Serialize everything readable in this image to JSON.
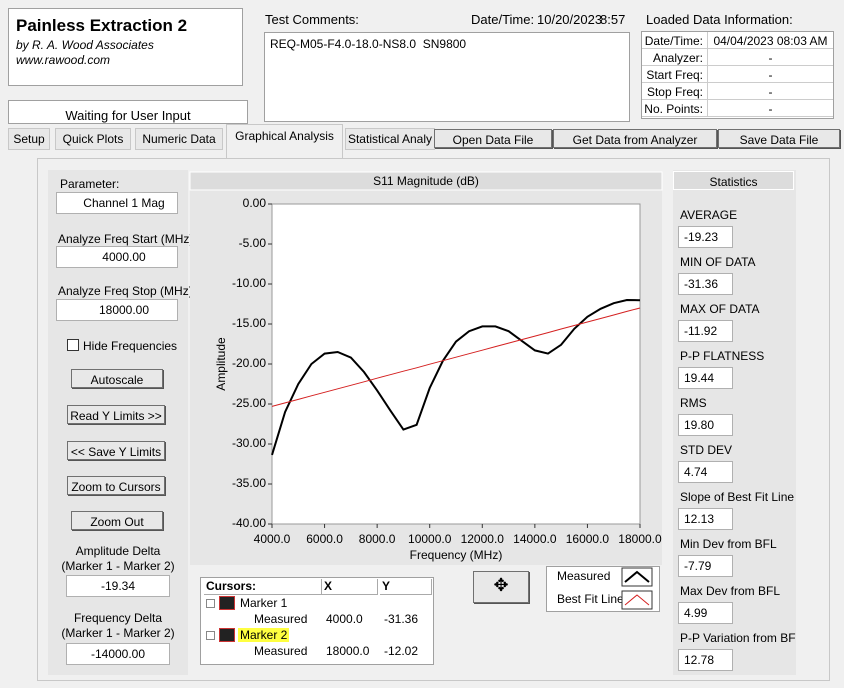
{
  "header": {
    "title": "Painless Extraction 2",
    "author": "by R. A. Wood Associates",
    "url": "www.rawood.com"
  },
  "status": "Waiting for User Input",
  "test_comments": {
    "label": "Test Comments:",
    "datetime_label": "Date/Time:",
    "date": "10/20/2023",
    "time": "8:57",
    "comment": "REQ-M05-F4.0-18.0-NS8.0  SN9800"
  },
  "loaded_data": {
    "title": "Loaded Data Information:",
    "rows": [
      [
        "Date/Time:",
        "04/04/2023 08:03 AM"
      ],
      [
        "Analyzer:",
        "-"
      ],
      [
        "Start Freq:",
        "-"
      ],
      [
        "Stop Freq:",
        "-"
      ],
      [
        "No. Points:",
        "-"
      ]
    ]
  },
  "tabs": [
    "Setup",
    "Quick Plots",
    "Numeric Data",
    "Graphical Analysis",
    "Statistical Analy"
  ],
  "buttons": [
    "Open Data File",
    "Get Data from Analyzer",
    "Save Data File"
  ],
  "controls": {
    "parameter_label": "Parameter:",
    "parameter": "Channel 1 Mag",
    "start_label": "Analyze Freq Start (MHz)",
    "start": "4000.00",
    "stop_label": "Analyze Freq Stop (MHz)",
    "stop": "18000.00",
    "hide": "Hide Frequencies",
    "side_buttons": [
      "Autoscale",
      "Read Y Limits >>",
      "<< Save Y Limits",
      "Zoom to Cursors",
      "Zoom Out"
    ],
    "amp_delta_label": [
      "Amplitude Delta",
      "(Marker 1 - Marker 2)"
    ],
    "amp_delta": "-19.34",
    "freq_delta_label": [
      "Frequency Delta",
      "(Marker 1 - Marker 2)"
    ],
    "freq_delta": "-14000.00"
  },
  "statistics": {
    "title": "Statistics",
    "items": [
      {
        "label": "AVERAGE",
        "value": "-19.23"
      },
      {
        "label": "MIN OF DATA",
        "value": "-31.36"
      },
      {
        "label": "MAX OF DATA",
        "value": "-11.92"
      },
      {
        "label": "P-P FLATNESS",
        "value": "19.44"
      },
      {
        "label": "RMS",
        "value": "19.80"
      },
      {
        "label": "STD DEV",
        "value": "4.74"
      },
      {
        "label": "Slope of Best Fit Line",
        "value": "12.13"
      },
      {
        "label": "Min Dev from BFL",
        "value": "-7.79"
      },
      {
        "label": "Max Dev from BFL",
        "value": "4.99"
      },
      {
        "label": "P-P Variation from BF",
        "value": "12.78"
      }
    ]
  },
  "cursors": {
    "headers": [
      "Cursors:",
      "X",
      "Y"
    ],
    "rows": [
      {
        "name": "Marker 1",
        "plot": "Measured",
        "x": "4000.0",
        "y": "-31.36"
      },
      {
        "name": "Marker 2",
        "plot": "Measured",
        "x": "18000.0",
        "y": "-12.02"
      }
    ]
  },
  "chart_data": {
    "type": "line",
    "title": "S11 Magnitude (dB)",
    "x_label": "Frequency (MHz)",
    "y_label": "Amplitude",
    "x": [
      4000,
      4500,
      5000,
      5500,
      6000,
      6500,
      7000,
      7500,
      8000,
      8500,
      9000,
      9500,
      10000,
      10500,
      11000,
      11500,
      12000,
      12500,
      13000,
      13500,
      14000,
      14500,
      15000,
      15500,
      16000,
      16500,
      17000,
      17500,
      18000
    ],
    "series": [
      {
        "name": "Measured",
        "color": "#000000",
        "values": [
          -31.36,
          -26,
          -22.5,
          -20,
          -18.7,
          -18.5,
          -19.2,
          -21,
          -23.3,
          -25.8,
          -28.2,
          -27.6,
          -23,
          -19.6,
          -17.2,
          -15.9,
          -15.3,
          -15.3,
          -15.9,
          -17.1,
          -18.3,
          -18.7,
          -17.6,
          -15.6,
          -14.1,
          -13.1,
          -12.4,
          -12,
          -12.02
        ]
      },
      {
        "name": "Best Fit Line",
        "color": "#d42020",
        "values": [
          -25.3,
          -24.86,
          -24.42,
          -23.98,
          -23.54,
          -23.1,
          -22.66,
          -22.22,
          -21.78,
          -21.34,
          -20.9,
          -20.47,
          -20.03,
          -19.59,
          -19.15,
          -18.71,
          -18.27,
          -17.83,
          -17.39,
          -16.95,
          -16.51,
          -16.07,
          -15.63,
          -15.19,
          -14.75,
          -14.31,
          -13.87,
          -13.43,
          -13.0
        ]
      }
    ],
    "xlim": [
      4000,
      18000
    ],
    "ylim": [
      -40,
      0
    ],
    "xticks": [
      {
        "value": 4000,
        "label": "4000.0"
      },
      {
        "value": 6000,
        "label": "6000.0"
      },
      {
        "value": 8000,
        "label": "8000.0"
      },
      {
        "value": 10000,
        "label": "10000.0"
      },
      {
        "value": 12000,
        "label": "12000.0"
      },
      {
        "value": 14000,
        "label": "14000.0"
      },
      {
        "value": 16000,
        "label": "16000.0"
      },
      {
        "value": 18000,
        "label": "18000.0"
      }
    ],
    "yticks": [
      {
        "value": 0,
        "label": "0.00"
      },
      {
        "value": -5,
        "label": "-5.00"
      },
      {
        "value": -10,
        "label": "-10.00"
      },
      {
        "value": -15,
        "label": "-15.00"
      },
      {
        "value": -20,
        "label": "-20.00"
      },
      {
        "value": -25,
        "label": "-25.00"
      },
      {
        "value": -30,
        "label": "-30.00"
      },
      {
        "value": -35,
        "label": "-35.00"
      },
      {
        "value": -40,
        "label": "-40.00"
      }
    ]
  }
}
